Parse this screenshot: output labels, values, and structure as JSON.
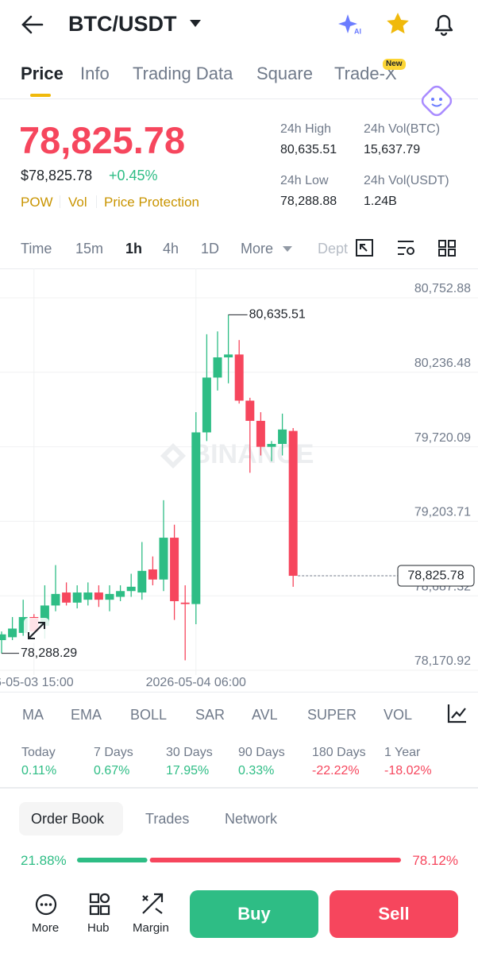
{
  "header": {
    "title": "BTC/USDT"
  },
  "tabs": {
    "items": [
      "Price",
      "Info",
      "Trading Data",
      "Square",
      "Trade-X"
    ],
    "badge": "New"
  },
  "price": {
    "last": "78,825.78",
    "usd": "$78,825.78",
    "change": "+0.45%",
    "tags": [
      "POW",
      "Vol",
      "Price Protection"
    ]
  },
  "stats": [
    {
      "label": "24h High",
      "value": "80,635.51"
    },
    {
      "label": "24h Vol(BTC)",
      "value": "15,637.79"
    },
    {
      "label": "24h Low",
      "value": "78,288.88"
    },
    {
      "label": "24h Vol(USDT)",
      "value": "1.24B"
    }
  ],
  "intervals": [
    "Time",
    "15m",
    "1h",
    "4h",
    "1D",
    "More",
    "Dept"
  ],
  "chart_data": {
    "type": "candlestick",
    "watermark": "BINANCE",
    "categories": [
      null,
      null,
      null,
      "6-05-03 15:00",
      null,
      null,
      null,
      null,
      null,
      null,
      null,
      null,
      null,
      null,
      null,
      null,
      null,
      null,
      "2026-05-04 06:00",
      null,
      null,
      null,
      null,
      null,
      null,
      null,
      null,
      null
    ],
    "open": [
      78380,
      78400,
      78430,
      78540,
      78480,
      78620,
      78710,
      78640,
      78660,
      78710,
      78660,
      78680,
      78720,
      78710,
      78870,
      78800,
      79090,
      78640,
      78630,
      79820,
      80200,
      80340,
      80360,
      80040,
      79900,
      79720,
      79740,
      79830
    ],
    "high": [
      78440,
      78540,
      78660,
      78560,
      78760,
      78900,
      78780,
      78760,
      78780,
      78760,
      78760,
      78760,
      78840,
      79060,
      78960,
      79350,
      79180,
      78760,
      79960,
      80500,
      80520,
      80635.51,
      80460,
      80060,
      79960,
      79760,
      79950,
      79850
    ],
    "low": [
      78288.29,
      78380,
      78410,
      78420,
      78390,
      78580,
      78620,
      78600,
      78620,
      78610,
      78580,
      78650,
      78680,
      78660,
      78760,
      78720,
      78520,
      78240,
      78490,
      79760,
      80110,
      80160,
      80020,
      79540,
      79660,
      79620,
      79660,
      78750
    ],
    "close": [
      78420,
      78460,
      78540,
      78440,
      78620,
      78700,
      78640,
      78710,
      78710,
      78660,
      78700,
      78720,
      78750,
      78860,
      78800,
      79090,
      78650,
      78630,
      79820,
      80200,
      80340,
      80360,
      80040,
      79900,
      79720,
      79740,
      79840,
      78825.78
    ],
    "up_color": "#2ebd85",
    "down_color": "#f6465d",
    "ylim": [
      78170.92,
      80752.88
    ],
    "yticks": [
      {
        "value": 80752.88,
        "label": "80,752.88"
      },
      {
        "value": 80236.48,
        "label": "80,236.48"
      },
      {
        "value": 79720.09,
        "label": "79,720.09"
      },
      {
        "value": 79203.71,
        "label": "79,203.71"
      },
      {
        "value": 78687.32,
        "label": "78,687.32"
      },
      {
        "value": 78170.92,
        "label": "78,170.92"
      }
    ],
    "grid": true,
    "high_label": {
      "value": 80635.51,
      "label": "80,635.51"
    },
    "low_label": {
      "value": 78288.29,
      "label": "78,288.29"
    },
    "last_price": {
      "value": 78825.78,
      "label": "78,825.78"
    }
  },
  "indicators": [
    "MA",
    "EMA",
    "BOLL",
    "SAR",
    "AVL",
    "SUPER",
    "VOL"
  ],
  "performance": [
    {
      "label": "Today",
      "value": "0.11%"
    },
    {
      "label": "7 Days",
      "value": "0.67%"
    },
    {
      "label": "30 Days",
      "value": "17.95%"
    },
    {
      "label": "90 Days",
      "value": "0.33%"
    },
    {
      "label": "180 Days",
      "value": "-22.22%"
    },
    {
      "label": "1 Year",
      "value": "-18.02%"
    }
  ],
  "order_book": {
    "tabs": [
      "Order Book",
      "Trades",
      "Network"
    ],
    "buy": {
      "value": 21.88,
      "label": "21.88%"
    },
    "sell": {
      "value": 78.12,
      "label": "78.12%"
    }
  },
  "nav": {
    "items": [
      "More",
      "Hub",
      "Margin"
    ],
    "buy": "Buy",
    "sell": "Sell"
  }
}
